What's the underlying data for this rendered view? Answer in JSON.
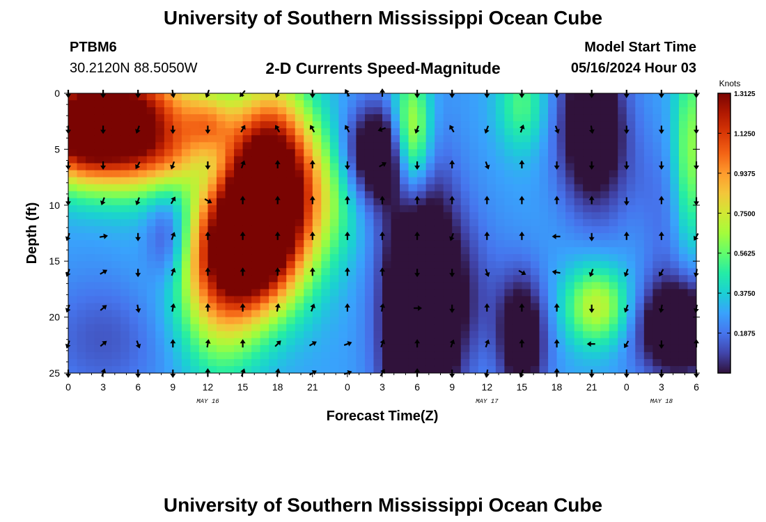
{
  "header": {
    "title": "University of Southern Mississippi Ocean Cube",
    "station": "PTBM6",
    "coords": "30.2120N  88.5050W",
    "subtitle": "2-D Currents Speed-Magnitude",
    "model_start_label": "Model Start Time",
    "model_start_value": "05/16/2024 Hour 03"
  },
  "footer": {
    "title": "University of Southern Mississippi Ocean Cube"
  },
  "colors": {
    "scale": [
      "#30123b",
      "#4145ab",
      "#4675ed",
      "#39a2fc",
      "#1bcfd4",
      "#24eca6",
      "#61fc6c",
      "#a4fc3b",
      "#d1e834",
      "#f3c63a",
      "#fe9b2d",
      "#f36315",
      "#d93806",
      "#b11901",
      "#7a0402"
    ]
  },
  "chart_data": {
    "type": "heatmap",
    "xlabel": "Forecast Time(Z)",
    "ylabel": "Depth (ft)",
    "colorbar_label": "Knots",
    "x_ticks": [
      "0",
      "3",
      "6",
      "9",
      "12",
      "15",
      "18",
      "21",
      "0",
      "3",
      "6",
      "9",
      "12",
      "15",
      "18",
      "21",
      "0",
      "3",
      "6"
    ],
    "x_tick_hours": [
      0,
      3,
      6,
      9,
      12,
      15,
      18,
      21,
      24,
      27,
      30,
      33,
      36,
      39,
      42,
      45,
      48,
      51,
      54
    ],
    "date_labels": [
      {
        "text": "MAY 16",
        "hour": 12
      },
      {
        "text": "MAY 17",
        "hour": 36
      },
      {
        "text": "MAY 18",
        "hour": 51
      }
    ],
    "y_ticks": [
      "0",
      "5",
      "10",
      "15",
      "20",
      "25"
    ],
    "y_tick_values": [
      0,
      5,
      10,
      15,
      20,
      25
    ],
    "xlim": [
      0,
      54
    ],
    "ylim": [
      0,
      25
    ],
    "colorbar_ticks": [
      "1.3125",
      "1.1250",
      "0.9375",
      "0.7500",
      "0.5625",
      "0.3750",
      "0.1875"
    ],
    "colorbar_tick_values": [
      1.3125,
      1.125,
      0.9375,
      0.75,
      0.5625,
      0.375,
      0.1875
    ],
    "colorbar_range": [
      0,
      1.3125
    ],
    "arrow_hours": [
      0,
      3,
      6,
      9,
      12,
      15,
      18,
      21,
      24,
      27,
      30,
      33,
      36,
      39,
      42,
      45,
      48,
      51,
      54
    ],
    "arrow_depths": [
      0,
      3.2,
      6.4,
      9.6,
      12.8,
      16,
      19.2,
      22.4,
      25
    ],
    "arrow_directions_deg": [
      [
        180,
        180,
        180,
        180,
        200,
        200,
        200,
        200,
        180
      ],
      [
        180,
        180,
        180,
        200,
        80,
        60,
        50,
        50,
        20
      ],
      [
        180,
        200,
        210,
        200,
        180,
        180,
        170,
        160,
        180
      ],
      [
        170,
        180,
        200,
        30,
        20,
        20,
        10,
        0,
        180
      ],
      [
        200,
        180,
        180,
        120,
        0,
        0,
        0,
        10,
        0
      ],
      [
        220,
        30,
        20,
        0,
        0,
        0,
        0,
        0,
        20
      ],
      [
        200,
        330,
        0,
        0,
        0,
        0,
        10,
        45,
        10
      ],
      [
        180,
        330,
        0,
        0,
        0,
        0,
        20,
        60,
        60
      ],
      [
        330,
        330,
        180,
        0,
        0,
        0,
        0,
        70,
        70
      ],
      [
        0,
        250,
        60,
        0,
        0,
        0,
        10,
        20,
        30
      ],
      [
        180,
        200,
        180,
        0,
        0,
        180,
        90,
        0,
        0
      ],
      [
        180,
        330,
        0,
        0,
        200,
        180,
        180,
        20,
        180
      ],
      [
        180,
        200,
        160,
        0,
        0,
        160,
        0,
        20,
        190
      ],
      [
        180,
        20,
        0,
        0,
        0,
        120,
        0,
        0,
        200
      ],
      [
        180,
        160,
        180,
        0,
        270,
        280,
        0,
        0,
        0
      ],
      [
        180,
        170,
        180,
        0,
        180,
        200,
        180,
        270,
        180
      ],
      [
        180,
        180,
        180,
        180,
        0,
        200,
        200,
        210,
        180
      ],
      [
        180,
        180,
        180,
        0,
        0,
        210,
        190,
        180,
        180
      ],
      [
        180,
        180,
        180,
        180,
        210,
        190,
        190,
        0,
        180
      ]
    ]
  }
}
